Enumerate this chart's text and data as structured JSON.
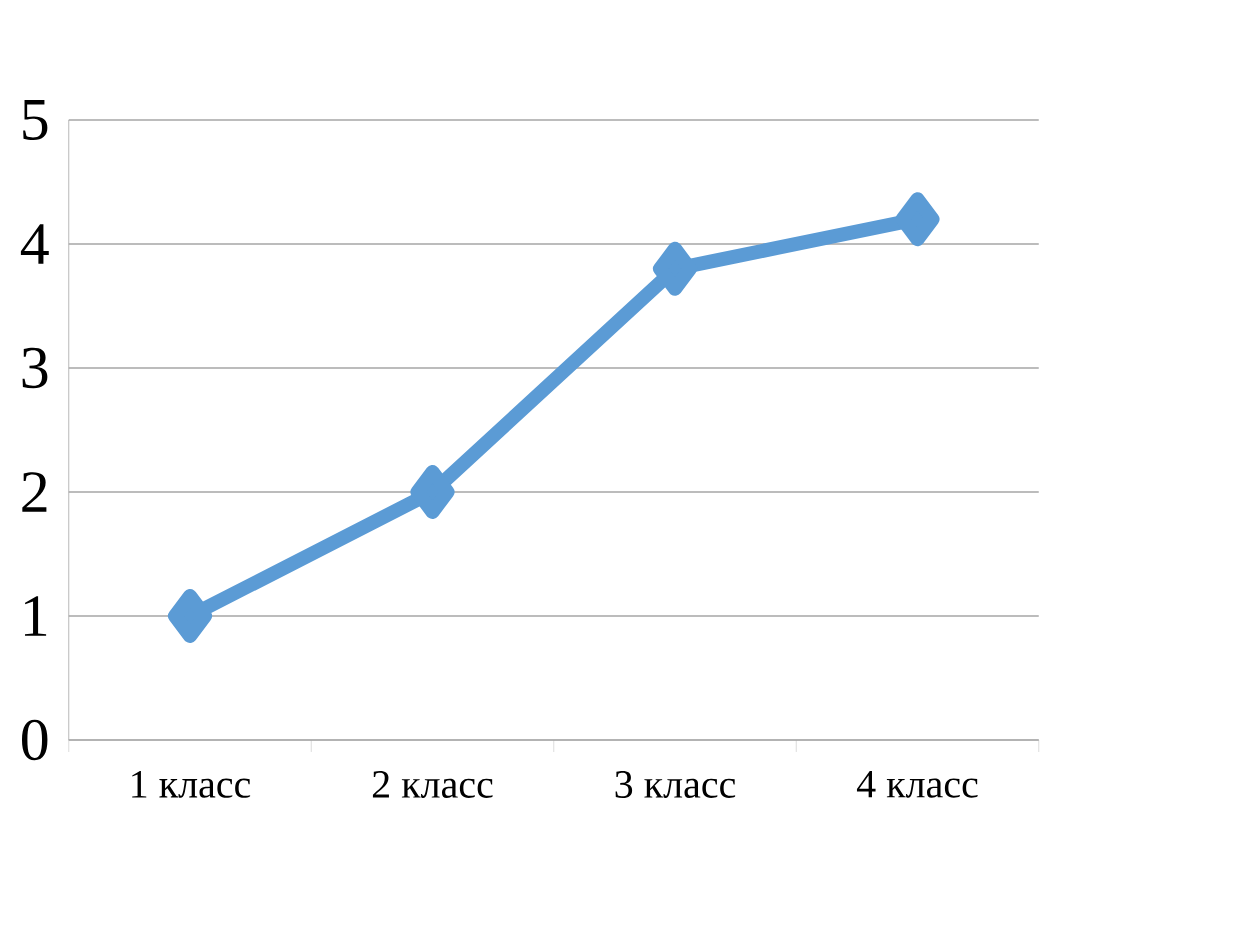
{
  "chart_data": {
    "type": "line",
    "categories": [
      "1 класс",
      "2 класс",
      "3 класс",
      "4 класс"
    ],
    "series": [
      {
        "color": "#5b9bd5",
        "values": [
          1,
          2,
          3.8,
          4.2
        ]
      }
    ],
    "ylim": [
      0,
      5
    ],
    "yticks": [
      0,
      1,
      2,
      3,
      4,
      5
    ],
    "grid": "y",
    "marker": "diamond",
    "line_style": "solid"
  }
}
